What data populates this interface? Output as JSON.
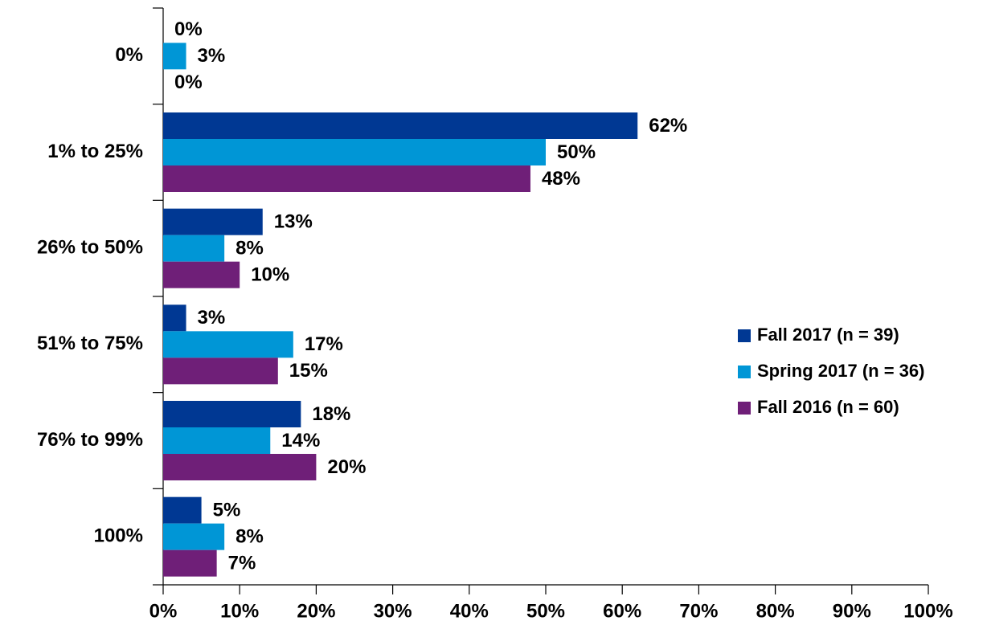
{
  "chart_data": {
    "type": "bar",
    "orientation": "horizontal",
    "categories": [
      "0%",
      "1% to 25%",
      "26% to 50%",
      "51% to 75%",
      "76% to 99%",
      "100%"
    ],
    "series": [
      {
        "name": "Fall 2017 (n = 39)",
        "color": "#003893",
        "values": [
          0,
          62,
          13,
          3,
          18,
          5
        ],
        "value_labels": [
          "0%",
          "62%",
          "13%",
          "3%",
          "18%",
          "5%"
        ]
      },
      {
        "name": "Spring 2017 (n = 36)",
        "color": "#0096d6",
        "values": [
          3,
          50,
          8,
          17,
          14,
          8
        ],
        "value_labels": [
          "3%",
          "50%",
          "8%",
          "17%",
          "14%",
          "8%"
        ]
      },
      {
        "name": "Fall 2016 (n = 60)",
        "color": "#6f1f78",
        "values": [
          0,
          48,
          10,
          15,
          20,
          7
        ],
        "value_labels": [
          "0%",
          "48%",
          "10%",
          "15%",
          "20%",
          "7%"
        ]
      }
    ],
    "xlim": [
      0,
      100
    ],
    "xticks": [
      {
        "value": 0,
        "label": "0%"
      },
      {
        "value": 10,
        "label": "10%"
      },
      {
        "value": 20,
        "label": "20%"
      },
      {
        "value": 30,
        "label": "30%"
      },
      {
        "value": 40,
        "label": "40%"
      },
      {
        "value": 50,
        "label": "50%"
      },
      {
        "value": 60,
        "label": "60%"
      },
      {
        "value": 70,
        "label": "70%"
      },
      {
        "value": 80,
        "label": "80%"
      },
      {
        "value": 90,
        "label": "90%"
      },
      {
        "value": 100,
        "label": "100%"
      }
    ],
    "legend": "right"
  }
}
